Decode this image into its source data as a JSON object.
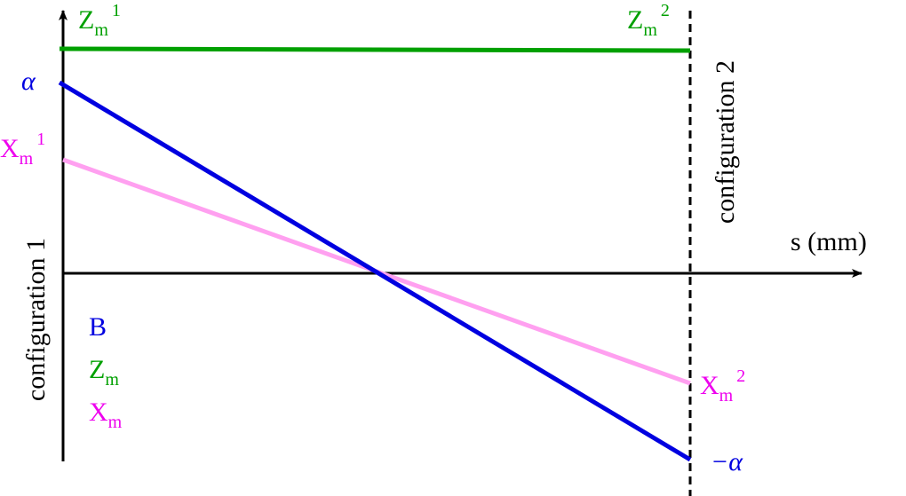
{
  "axis": {
    "x_label": "s (mm)"
  },
  "configurations": [
    "configuration 1",
    "configuration 2"
  ],
  "labels": {
    "z1": {
      "base": "Z",
      "sub": "m",
      "sup": "1"
    },
    "z2": {
      "base": "Z",
      "sub": "m",
      "sup": "2"
    },
    "alpha": {
      "base": "α"
    },
    "x1": {
      "base": "X",
      "sub": "m",
      "sup": "1"
    },
    "x2": {
      "base": "X",
      "sub": "m",
      "sup": "2"
    },
    "minus_alpha": {
      "base": "−α"
    }
  },
  "legend": [
    {
      "base": "B"
    },
    {
      "base": "Z",
      "sub": "m"
    },
    {
      "base": "X",
      "sub": "m"
    }
  ]
}
